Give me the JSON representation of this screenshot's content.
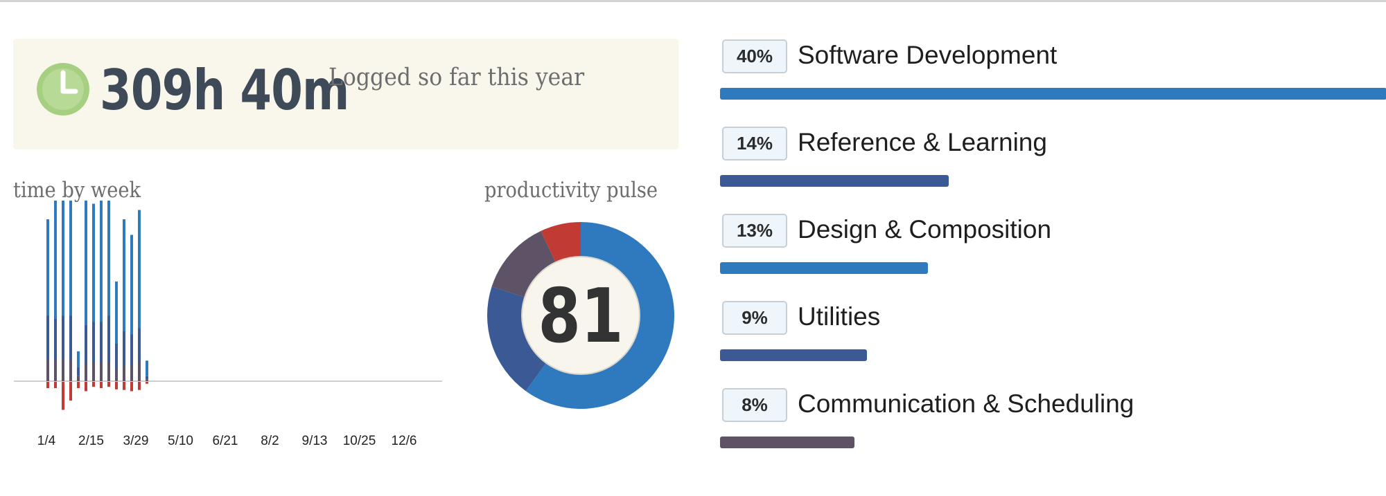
{
  "summary": {
    "total_time": "309h 40m",
    "subtitle": "Logged so far this year",
    "clock_icon": "clock-icon"
  },
  "time_by_week": {
    "title": "time by week",
    "x_ticks": [
      "1/4",
      "2/15",
      "3/29",
      "5/10",
      "6/21",
      "8/2",
      "9/13",
      "10/25",
      "12/6"
    ],
    "colors": {
      "very_productive": "#2f7abf",
      "productive": "#3b5a95",
      "neutral": "#5e5267",
      "distracting": "#c23a34",
      "baseline": "#cfcfcf"
    }
  },
  "productivity_pulse": {
    "title": "productivity pulse",
    "score": "81",
    "colors": {
      "very_productive": "#2f7abf",
      "productive": "#3b5a95",
      "neutral": "#5e5267",
      "distracting": "#c23a34",
      "center": "#f8f6ec"
    }
  },
  "categories": [
    {
      "percent_label": "40%",
      "name": "Software Development",
      "share": 40,
      "color": "#2f7abf"
    },
    {
      "percent_label": "14%",
      "name": "Reference & Learning",
      "share": 14,
      "color": "#3b5a95"
    },
    {
      "percent_label": "13%",
      "name": "Design & Composition",
      "share": 13,
      "color": "#2f7abf"
    },
    {
      "percent_label": "9%",
      "name": "Utilities",
      "share": 9,
      "color": "#3b5a95"
    },
    {
      "percent_label": "8%",
      "name": "Communication & Scheduling",
      "share": 8,
      "color": "#5e5267"
    }
  ],
  "chart_data": [
    {
      "type": "bar",
      "title": "time by week",
      "stacked": true,
      "x_tick_labels": [
        "1/4",
        "2/15",
        "3/29",
        "5/10",
        "6/21",
        "8/2",
        "9/13",
        "10/25",
        "12/6"
      ],
      "series": [
        {
          "values": [
            15.5,
            22,
            20,
            24.5,
            2.5,
            22,
            19,
            21,
            24.5,
            10,
            18,
            16,
            19,
            2.5
          ]
        },
        {
          "values": [
            7,
            6.5,
            7,
            7,
            1.5,
            6,
            6.5,
            6.5,
            7.5,
            4,
            5.5,
            5,
            5.5,
            0.5
          ]
        },
        {
          "values": [
            3.5,
            3.5,
            3.5,
            3.5,
            0.8,
            3,
            3,
            3,
            3,
            2,
            2.5,
            2.5,
            3,
            0.3
          ]
        },
        {
          "values": [
            -1,
            -1,
            -4.5,
            -3,
            -1,
            -1.5,
            -0.8,
            -1,
            -0.8,
            -1.2,
            -1.3,
            -1.5,
            -1.3,
            -0.3
          ]
        }
      ]
    },
    {
      "type": "pie",
      "title": "productivity pulse",
      "center_label": "81",
      "slices": [
        {
          "value": 60
        },
        {
          "value": 20
        },
        {
          "value": 13
        },
        {
          "value": 7
        }
      ]
    }
  ]
}
